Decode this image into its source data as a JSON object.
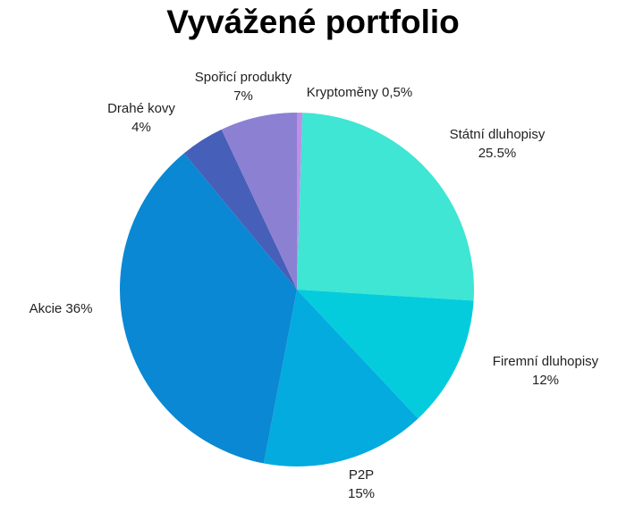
{
  "chart_data": {
    "type": "pie",
    "title": "Vyvážené portfolio",
    "start_angle_deg": 90,
    "direction": "clockwise",
    "legend": "none",
    "slices": [
      {
        "name": "Kryptoměny",
        "value": 0.5,
        "label_text": "Kryptoměny 0,5%",
        "lines": [
          "Kryptoměny 0,5%"
        ],
        "color": "#c08ee6"
      },
      {
        "name": "Státní dluhopisy",
        "value": 25.5,
        "label_text": "Státní dluhopisy 25.5%",
        "lines": [
          "Státní dluhopisy",
          "25.5%"
        ],
        "color": "#3ee6d3"
      },
      {
        "name": "Firemní dluhopisy",
        "value": 12,
        "label_text": "Firemní dluhopisy 12%",
        "lines": [
          "Firemní dluhopisy",
          "12%"
        ],
        "color": "#05ccdd"
      },
      {
        "name": "P2P",
        "value": 15,
        "label_text": "P2P 15%",
        "lines": [
          "P2P",
          "15%"
        ],
        "color": "#03abdf"
      },
      {
        "name": "Akcie",
        "value": 36,
        "label_text": "Akcie 36%",
        "lines": [
          "Akcie 36%"
        ],
        "color": "#0a88d3"
      },
      {
        "name": "Drahé kovy",
        "value": 4,
        "label_text": "Drahé kovy 4%",
        "lines": [
          "Drahé kovy",
          "4%"
        ],
        "color": "#465fb8"
      },
      {
        "name": "Spořicí produkty",
        "value": 7,
        "label_text": "Spořicí produkty 7%",
        "lines": [
          "Spořicí produkty",
          "7%"
        ],
        "color": "#8c80d2"
      }
    ]
  }
}
